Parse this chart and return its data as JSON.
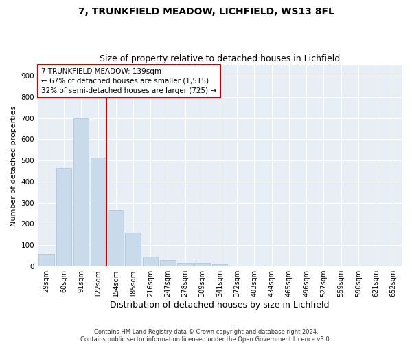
{
  "title": "7, TRUNKFIELD MEADOW, LICHFIELD, WS13 8FL",
  "subtitle": "Size of property relative to detached houses in Lichfield",
  "xlabel": "Distribution of detached houses by size in Lichfield",
  "ylabel": "Number of detached properties",
  "categories": [
    "29sqm",
    "60sqm",
    "91sqm",
    "122sqm",
    "154sqm",
    "185sqm",
    "216sqm",
    "247sqm",
    "278sqm",
    "309sqm",
    "341sqm",
    "372sqm",
    "403sqm",
    "434sqm",
    "465sqm",
    "496sqm",
    "527sqm",
    "559sqm",
    "590sqm",
    "621sqm",
    "652sqm"
  ],
  "values": [
    60,
    465,
    700,
    515,
    265,
    160,
    45,
    30,
    15,
    15,
    10,
    5,
    2,
    0,
    0,
    0,
    0,
    0,
    0,
    0,
    0
  ],
  "bar_color": "#c9daea",
  "bar_edge_color": "#a8c0d6",
  "red_line_index": 3,
  "red_line_color": "#cc0000",
  "annotation_text_line1": "7 TRUNKFIELD MEADOW: 139sqm",
  "annotation_text_line2": "← 67% of detached houses are smaller (1,515)",
  "annotation_text_line3": "32% of semi-detached houses are larger (725) →",
  "annotation_box_color": "#cc0000",
  "annotation_bg": "#ffffff",
  "ylim": [
    0,
    950
  ],
  "yticks": [
    0,
    100,
    200,
    300,
    400,
    500,
    600,
    700,
    800,
    900
  ],
  "background_color": "#e8eef5",
  "grid_color": "#ffffff",
  "footer_line1": "Contains HM Land Registry data © Crown copyright and database right 2024.",
  "footer_line2": "Contains public sector information licensed under the Open Government Licence v3.0.",
  "title_fontsize": 10,
  "subtitle_fontsize": 9,
  "xlabel_fontsize": 9,
  "ylabel_fontsize": 8,
  "ann_fontsize": 7.5,
  "tick_fontsize": 7
}
